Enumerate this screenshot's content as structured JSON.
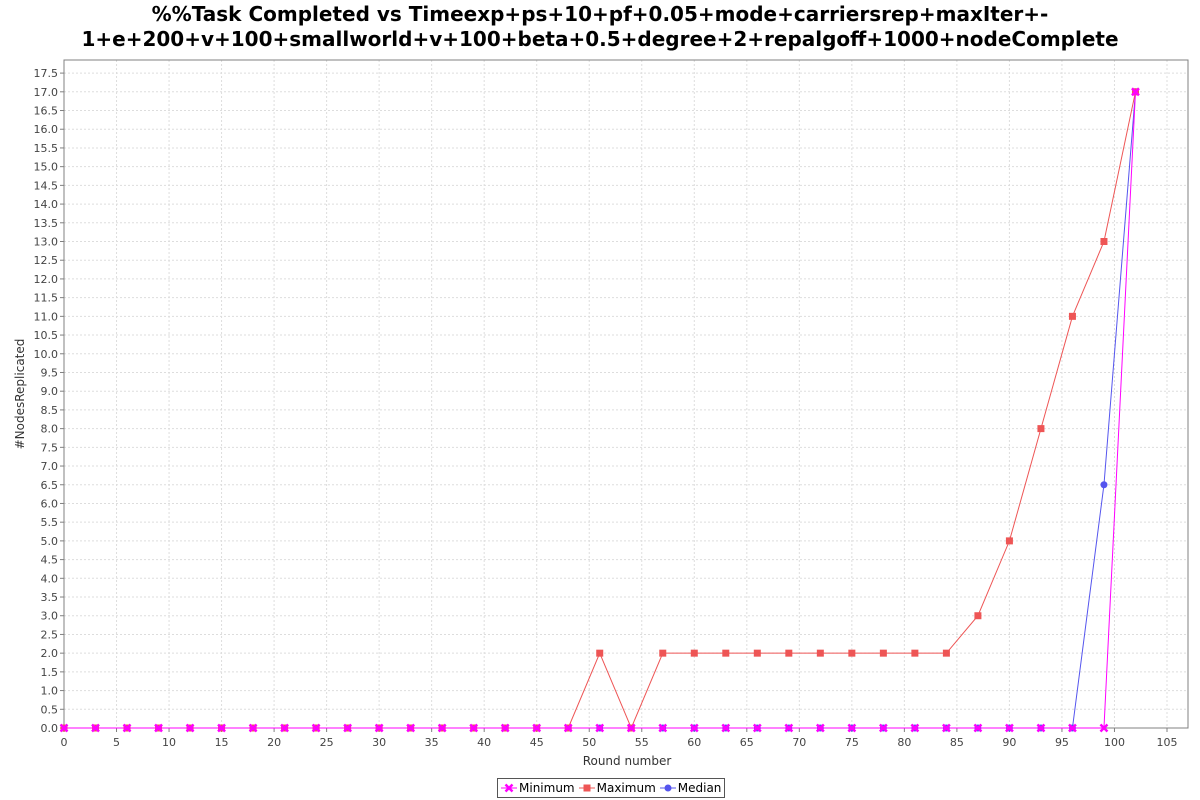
{
  "chart_data": {
    "type": "line",
    "title_lines": [
      "%%Task Completed vs Timeexp+ps+10+pf+0.05+mode+carriersrep+maxIter+-",
      "1+e+200+v+100+smallworld+v+100+beta+0.5+degree+2+repalgoff+1000+nodeComplete"
    ],
    "xlabel": "Round number",
    "ylabel": "#NodesReplicated",
    "xlim": [
      0,
      107
    ],
    "ylim": [
      0,
      17.85
    ],
    "x_ticks": [
      0,
      5,
      10,
      15,
      20,
      25,
      30,
      35,
      40,
      45,
      50,
      55,
      60,
      65,
      70,
      75,
      80,
      85,
      90,
      95,
      100,
      105
    ],
    "y_ticks": [
      "0.0",
      "0.5",
      "1.0",
      "1.5",
      "2.0",
      "2.5",
      "3.0",
      "3.5",
      "4.0",
      "4.5",
      "5.0",
      "5.5",
      "6.0",
      "6.5",
      "7.0",
      "7.5",
      "8.0",
      "8.5",
      "9.0",
      "9.5",
      "10.0",
      "10.5",
      "11.0",
      "11.5",
      "12.0",
      "12.5",
      "13.0",
      "13.5",
      "14.0",
      "14.5",
      "15.0",
      "15.5",
      "16.0",
      "16.5",
      "17.0",
      "17.5"
    ],
    "grid": true,
    "legend_position": "bottom-center",
    "x": [
      0,
      3,
      6,
      9,
      12,
      15,
      18,
      21,
      24,
      27,
      30,
      33,
      36,
      39,
      42,
      45,
      48,
      51,
      54,
      57,
      60,
      63,
      66,
      69,
      72,
      75,
      78,
      81,
      84,
      87,
      90,
      93,
      96,
      99,
      102
    ],
    "series": [
      {
        "name": "Minimum",
        "color": "#ff00ff",
        "marker": "x",
        "values": [
          0,
          0,
          0,
          0,
          0,
          0,
          0,
          0,
          0,
          0,
          0,
          0,
          0,
          0,
          0,
          0,
          0,
          0,
          0,
          0,
          0,
          0,
          0,
          0,
          0,
          0,
          0,
          0,
          0,
          0,
          0,
          0,
          0,
          0,
          17
        ]
      },
      {
        "name": "Maximum",
        "color": "#ee5555",
        "marker": "square",
        "values": [
          0,
          0,
          0,
          0,
          0,
          0,
          0,
          0,
          0,
          0,
          0,
          0,
          0,
          0,
          0,
          0,
          0,
          2,
          0,
          2,
          2,
          2,
          2,
          2,
          2,
          2,
          2,
          2,
          2,
          3,
          5,
          8,
          11,
          13,
          17
        ]
      },
      {
        "name": "Median",
        "color": "#5555ee",
        "marker": "circle",
        "values": [
          0,
          0,
          0,
          0,
          0,
          0,
          0,
          0,
          0,
          0,
          0,
          0,
          0,
          0,
          0,
          0,
          0,
          0,
          0,
          0,
          0,
          0,
          0,
          0,
          0,
          0,
          0,
          0,
          0,
          0,
          0,
          0,
          0,
          6.5,
          17
        ]
      }
    ]
  }
}
